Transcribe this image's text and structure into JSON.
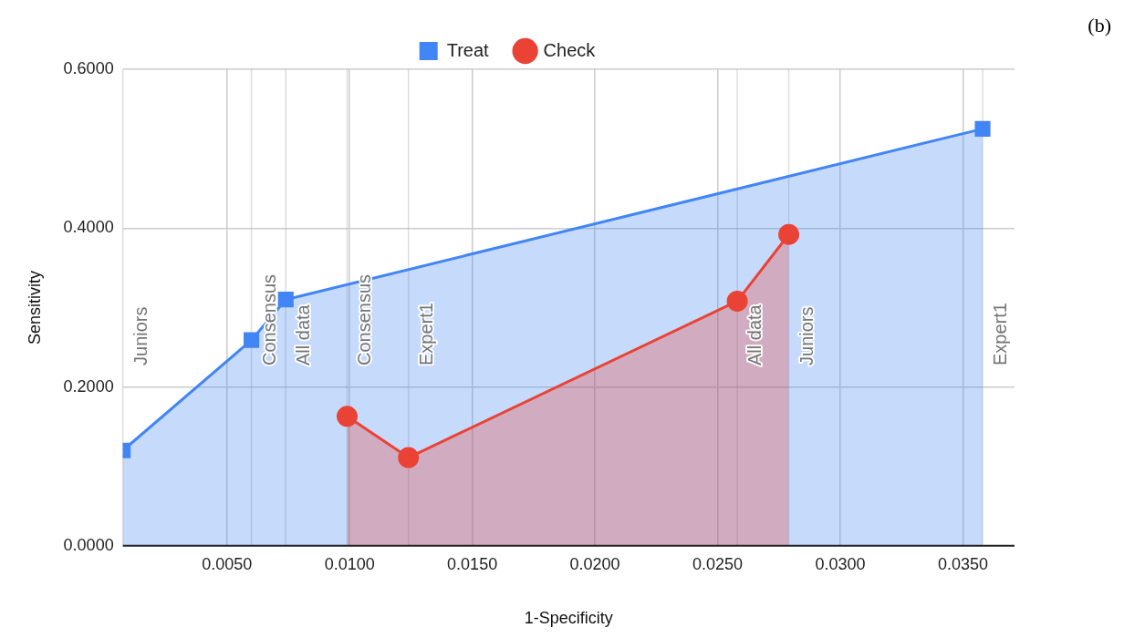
{
  "chart_data": {
    "type": "area",
    "xlabel": "1-Specificity",
    "ylabel": "Sensitivity",
    "annotations": [
      "(b)"
    ],
    "series": [
      {
        "name": "Treat",
        "color": "#4285f4",
        "marker": "square",
        "x": [
          0.00076,
          0.006,
          0.0074,
          0.0358
        ],
        "values": [
          0.12,
          0.259,
          0.31,
          0.525
        ]
      },
      {
        "name": "Check",
        "color": "#ea4335",
        "marker": "circle",
        "x": [
          0.0099,
          0.0124,
          0.0258,
          0.0279
        ],
        "values": [
          0.163,
          0.111,
          0.308,
          0.392
        ]
      }
    ],
    "xlim": [
      0.00076,
      0.0371
    ],
    "xticks": [
      {
        "value": 0.005,
        "label": "0.0050"
      },
      {
        "value": 0.01,
        "label": "0.0100"
      },
      {
        "value": 0.015,
        "label": "0.0150"
      },
      {
        "value": 0.02,
        "label": "0.0200"
      },
      {
        "value": 0.025,
        "label": "0.0250"
      },
      {
        "value": 0.03,
        "label": "0.0300"
      },
      {
        "value": 0.035,
        "label": "0.0350"
      }
    ],
    "ylim": [
      0,
      0.6
    ],
    "yticks": [
      {
        "value": 0,
        "label": "0.0000"
      },
      {
        "value": 0.2,
        "label": "0.2000"
      },
      {
        "value": 0.4,
        "label": "0.4000"
      },
      {
        "value": 0.6,
        "label": "0.6000"
      }
    ],
    "ref_lines": [
      {
        "axis": "x",
        "value": 0.00076,
        "label": "Juniors"
      },
      {
        "axis": "x",
        "value": 0.006,
        "label": "Consensus"
      },
      {
        "axis": "x",
        "value": 0.0074,
        "label": "All data"
      },
      {
        "axis": "x",
        "value": 0.0099,
        "label": "Consensus"
      },
      {
        "axis": "x",
        "value": 0.0124,
        "label": "Expert1"
      },
      {
        "axis": "x",
        "value": 0.0258,
        "label": "All data"
      },
      {
        "axis": "x",
        "value": 0.0279,
        "label": "Juniors"
      },
      {
        "axis": "x",
        "value": 0.0358,
        "label": "Expert1"
      }
    ],
    "grid": true,
    "legend": "top"
  }
}
